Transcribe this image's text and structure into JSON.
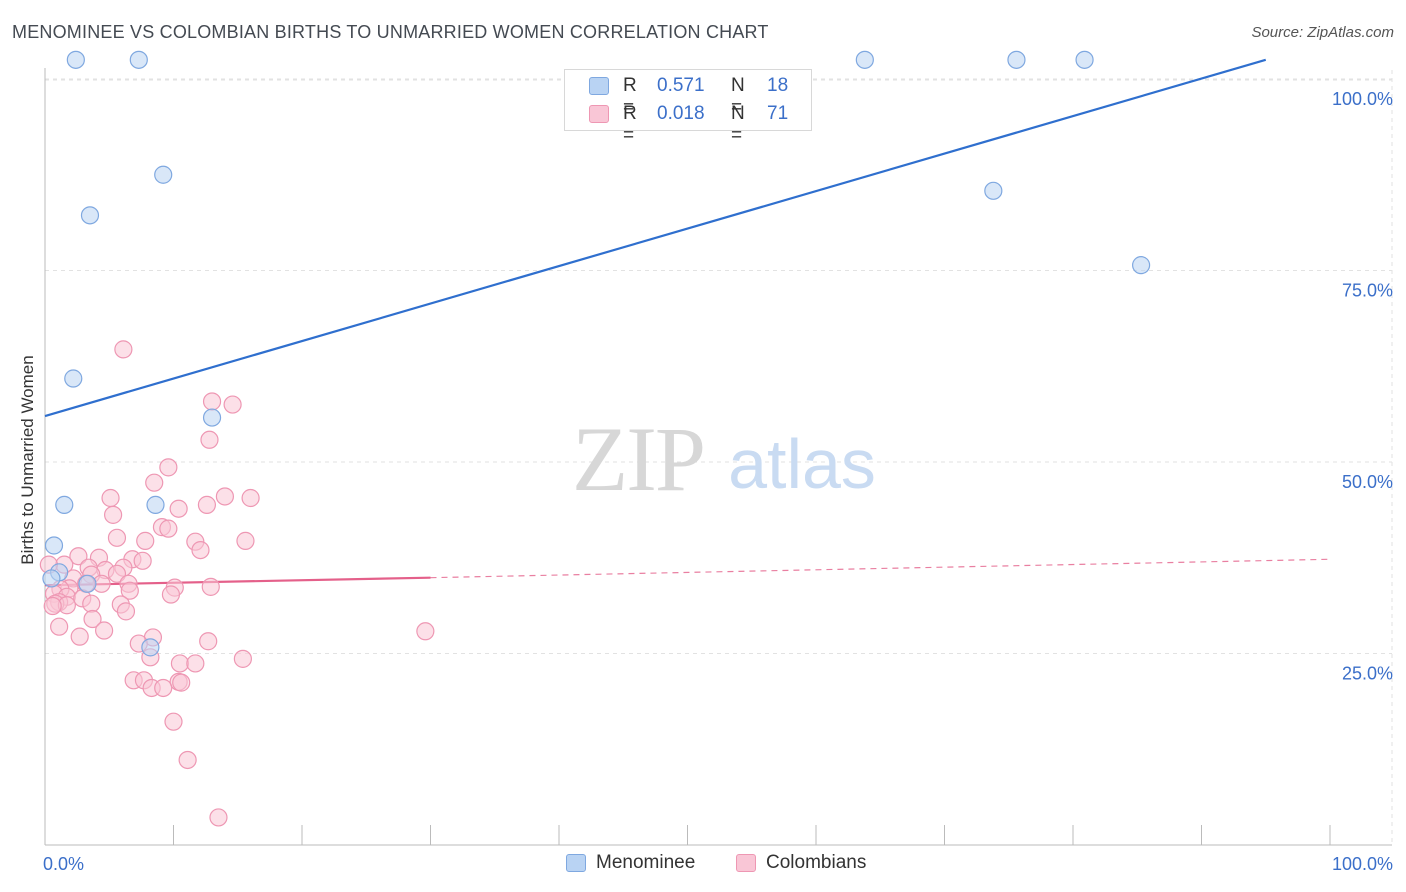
{
  "title": "MENOMINEE VS COLOMBIAN BIRTHS TO UNMARRIED WOMEN CORRELATION CHART",
  "source": "Source: ZipAtlas.com",
  "watermark": {
    "zip": "ZIP",
    "atlas": "atlas"
  },
  "legend_top": [
    {
      "label_r": "R =",
      "r": "0.571",
      "label_n": "N =",
      "n": "18"
    },
    {
      "label_r": "R =",
      "r": "0.018",
      "label_n": "N =",
      "n": "71"
    }
  ],
  "colors": {
    "menominee_fill": "#b9d3f3",
    "menominee_stroke": "#7fa8e0",
    "menominee_line": "#2f6fce",
    "colombian_fill": "#f9c6d6",
    "colombian_stroke": "#ee97b3",
    "colombian_line": "#e4608a",
    "axis_text": "#3b6fc9",
    "grid": "#e2e2e2"
  },
  "chart_data": {
    "type": "scatter",
    "title": "MENOMINEE VS COLOMBIAN BIRTHS TO UNMARRIED WOMEN CORRELATION CHART",
    "xlabel": "",
    "ylabel": "Births to Unmarried Women",
    "xlim": [
      0,
      100
    ],
    "ylim": [
      0,
      100
    ],
    "x_tick_labels": [
      "0.0%",
      "100.0%"
    ],
    "y_ticks": [
      {
        "value": 25,
        "label": "25.0%"
      },
      {
        "value": 50,
        "label": "50.0%"
      },
      {
        "value": 75,
        "label": "75.0%"
      },
      {
        "value": 100,
        "label": "100.0%"
      }
    ],
    "legend_position": "top-center",
    "series": [
      {
        "name": "Menominee",
        "trend": {
          "x0": 0,
          "y0": 56,
          "x1": 95,
          "y1": 102.5,
          "dashed_to": null
        },
        "points": [
          [
            2.4,
            102.5
          ],
          [
            7.3,
            102.5
          ],
          [
            63.8,
            102.5
          ],
          [
            75.6,
            102.5
          ],
          [
            80.9,
            102.5
          ],
          [
            9.2,
            87.5
          ],
          [
            3.5,
            82.2
          ],
          [
            73.8,
            85.4
          ],
          [
            85.3,
            75.7
          ],
          [
            2.2,
            60.9
          ],
          [
            13,
            55.8
          ],
          [
            1.5,
            44.4
          ],
          [
            8.6,
            44.4
          ],
          [
            0.7,
            39.1
          ],
          [
            1.1,
            35.6
          ],
          [
            3.3,
            34.1
          ],
          [
            8.2,
            25.8
          ],
          [
            0.5,
            34.8
          ]
        ]
      },
      {
        "name": "Colombians",
        "trend": {
          "x0": 0,
          "y0": 33.9,
          "x1": 30,
          "y1": 34.9,
          "dashed_to": {
            "x": 100,
            "y": 37.3
          }
        },
        "points": [
          [
            6.1,
            64.7
          ],
          [
            13,
            57.9
          ],
          [
            14.6,
            57.5
          ],
          [
            12.8,
            52.9
          ],
          [
            9.6,
            49.3
          ],
          [
            8.5,
            47.3
          ],
          [
            5.1,
            45.3
          ],
          [
            14,
            45.5
          ],
          [
            16,
            45.3
          ],
          [
            12.6,
            44.4
          ],
          [
            10.4,
            43.9
          ],
          [
            5.3,
            43.1
          ],
          [
            9.1,
            41.5
          ],
          [
            9.6,
            41.3
          ],
          [
            5.6,
            40.1
          ],
          [
            7.8,
            39.7
          ],
          [
            15.6,
            39.7
          ],
          [
            11.7,
            39.6
          ],
          [
            12.1,
            38.5
          ],
          [
            2.6,
            37.7
          ],
          [
            4.2,
            37.5
          ],
          [
            6.8,
            37.3
          ],
          [
            7.6,
            37.1
          ],
          [
            1.5,
            36.6
          ],
          [
            3.4,
            36.2
          ],
          [
            6.1,
            36.2
          ],
          [
            4.7,
            35.9
          ],
          [
            0.3,
            36.6
          ],
          [
            3.6,
            35.3
          ],
          [
            5.6,
            35.4
          ],
          [
            2.2,
            34.8
          ],
          [
            4.4,
            34.1
          ],
          [
            3.2,
            34.1
          ],
          [
            6.5,
            34.1
          ],
          [
            1.9,
            33.5
          ],
          [
            1.2,
            33.4
          ],
          [
            10.1,
            33.6
          ],
          [
            12.9,
            33.7
          ],
          [
            6.6,
            33.2
          ],
          [
            9.8,
            32.7
          ],
          [
            0.7,
            32.8
          ],
          [
            1.7,
            32.4
          ],
          [
            2.9,
            32.2
          ],
          [
            1.1,
            31.7
          ],
          [
            3.6,
            31.5
          ],
          [
            5.9,
            31.4
          ],
          [
            0.8,
            31.5
          ],
          [
            1.7,
            31.3
          ],
          [
            6.3,
            30.5
          ],
          [
            0.6,
            31.2
          ],
          [
            3.7,
            29.5
          ],
          [
            1.1,
            28.5
          ],
          [
            4.6,
            28
          ],
          [
            2.7,
            27.2
          ],
          [
            29.6,
            27.9
          ],
          [
            8.4,
            27.1
          ],
          [
            12.7,
            26.6
          ],
          [
            7.3,
            26.3
          ],
          [
            8.2,
            24.5
          ],
          [
            15.4,
            24.3
          ],
          [
            10.5,
            23.7
          ],
          [
            11.7,
            23.7
          ],
          [
            6.9,
            21.5
          ],
          [
            7.7,
            21.5
          ],
          [
            10.4,
            21.3
          ],
          [
            10.6,
            21.2
          ],
          [
            8.3,
            20.5
          ],
          [
            9.2,
            20.5
          ],
          [
            10,
            16.1
          ],
          [
            11.1,
            11.1
          ],
          [
            13.5,
            3.6
          ]
        ]
      }
    ]
  }
}
